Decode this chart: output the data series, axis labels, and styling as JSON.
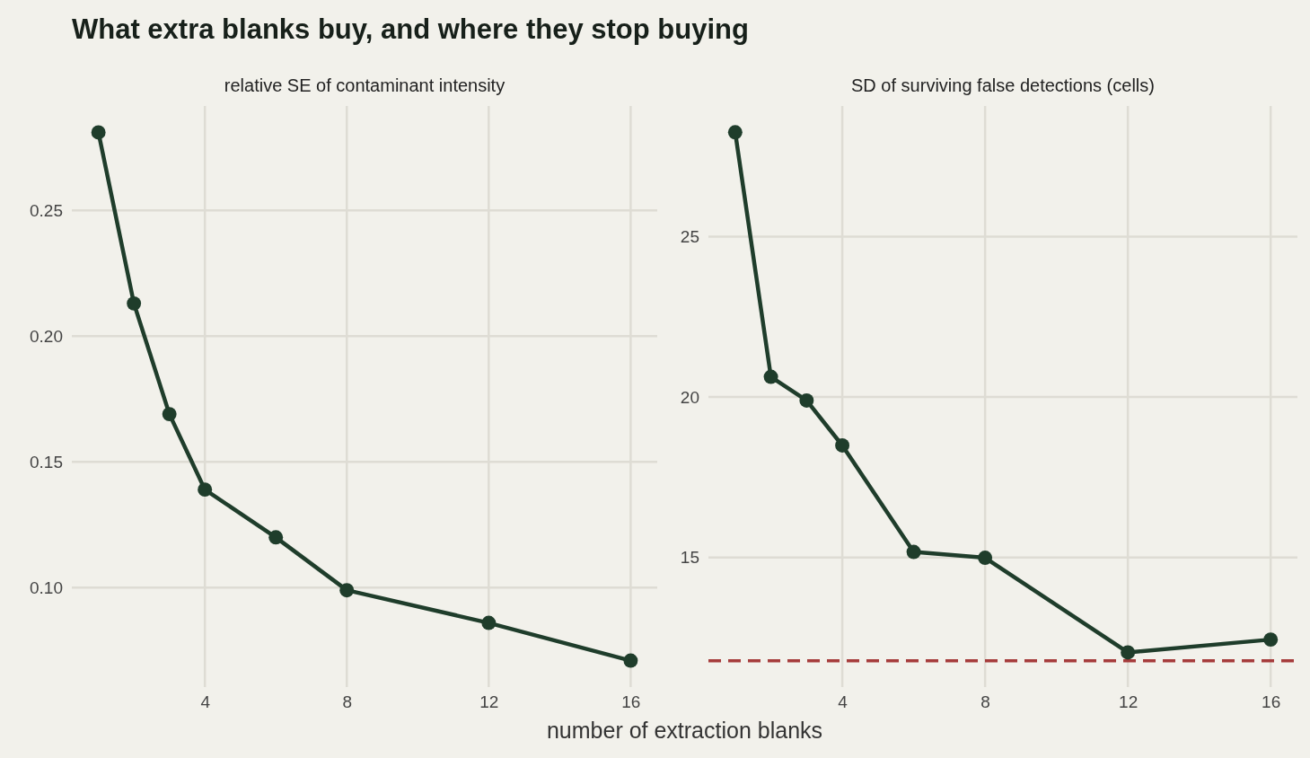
{
  "chart_data": [
    {
      "type": "line",
      "title": "What extra blanks buy, and where they stop buying",
      "subtitle": "relative SE of contaminant intensity",
      "xlabel": "number of extraction blanks",
      "x": [
        1,
        2,
        3,
        4,
        6,
        8,
        12,
        16
      ],
      "series": [
        {
          "color": "#1f3d2b",
          "values": [
            0.281,
            0.213,
            0.169,
            0.139,
            0.12,
            0.099,
            0.086,
            0.071
          ]
        }
      ],
      "xlim": [
        0.25,
        16.75
      ],
      "xticks": [
        4,
        8,
        12,
        16
      ],
      "ylim": [
        0.0605,
        0.2915
      ],
      "yticks": [
        {
          "value": 0.1,
          "label": "0.10"
        },
        {
          "value": 0.15,
          "label": "0.15"
        },
        {
          "value": 0.2,
          "label": "0.20"
        },
        {
          "value": 0.25,
          "label": "0.25"
        }
      ],
      "grid": true,
      "marker": "circle",
      "line_style": "solid"
    },
    {
      "type": "line",
      "subtitle": "SD of surviving false detections (cells)",
      "x": [
        1,
        2,
        3,
        4,
        6,
        8,
        12,
        16
      ],
      "series": [
        {
          "color": "#1f3d2b",
          "values": [
            28.25,
            20.63,
            19.89,
            18.49,
            15.17,
            14.99,
            12.04,
            12.44
          ]
        }
      ],
      "xlim": [
        0.25,
        16.75
      ],
      "xticks": [
        4,
        8,
        12,
        16
      ],
      "ylim": [
        10.96,
        29.07
      ],
      "yticks": [
        15,
        20,
        25
      ],
      "grid": true,
      "marker": "circle",
      "line_style": "solid",
      "ref_lines": [
        {
          "axis": "y",
          "value": 11.78,
          "color": "#a63c3c",
          "line_style": "dashed"
        }
      ]
    }
  ]
}
